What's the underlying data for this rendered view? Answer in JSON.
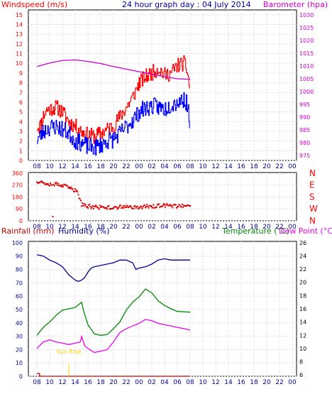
{
  "chart_data": [
    {
      "type": "line",
      "title": "24 hour graph day : 04 July 2014",
      "ylabel": "Windspeed (m/s)",
      "ylabel_right": "Barometer (hpa)",
      "x_ticks": [
        "08",
        "10",
        "12",
        "14",
        "16",
        "18",
        "20",
        "22",
        "00",
        "02",
        "04",
        "06",
        "08",
        "10",
        "12",
        "14",
        "16",
        "18",
        "20",
        "22",
        "00"
      ],
      "y_ticks": [
        0,
        1,
        2,
        3,
        4,
        5,
        6,
        7,
        8,
        9,
        10,
        11,
        12,
        13,
        14,
        15
      ],
      "y_ticks_right": [
        975,
        980,
        985,
        990,
        995,
        1000,
        1005,
        1010,
        1015,
        1020,
        1025,
        1030
      ],
      "ylim": [
        0,
        15.5
      ],
      "ylim_right": [
        973,
        1032
      ],
      "grid": true,
      "series": [
        {
          "key": "wind_gust",
          "color": "#ff0000",
          "kpoints": [
            [
              0,
              3.5
            ],
            [
              0.5,
              3.6
            ],
            [
              1,
              4.6
            ],
            [
              1.5,
              5.2
            ],
            [
              2,
              5.3
            ],
            [
              3,
              5.5
            ],
            [
              4,
              5.0
            ],
            [
              5,
              4.0
            ],
            [
              6,
              3.5
            ],
            [
              6.5,
              3.3
            ],
            [
              7,
              3.0
            ],
            [
              8,
              2.6
            ],
            [
              9,
              2.5
            ],
            [
              10,
              2.8
            ],
            [
              11,
              3.2
            ],
            [
              12,
              3.6
            ],
            [
              13,
              4.5
            ],
            [
              14,
              5.5
            ],
            [
              15,
              6.5
            ],
            [
              16,
              8.0
            ],
            [
              17,
              8.6
            ],
            [
              18,
              9.0
            ],
            [
              19,
              9.5
            ],
            [
              20,
              8.8
            ],
            [
              21,
              9.0
            ],
            [
              22,
              9.8
            ],
            [
              23,
              10.0
            ],
            [
              23.5,
              9.3
            ],
            [
              24,
              7.0
            ]
          ],
          "noise": 0.8,
          "seed": 11
        },
        {
          "key": "wind_avg",
          "color": "#0000ff",
          "kpoints": [
            [
              0,
              2.2
            ],
            [
              0.5,
              2.5
            ],
            [
              1,
              3.0
            ],
            [
              2,
              3.4
            ],
            [
              3,
              3.5
            ],
            [
              4,
              3.2
            ],
            [
              5,
              2.8
            ],
            [
              6,
              2.0
            ],
            [
              7,
              1.8
            ],
            [
              8,
              1.4
            ],
            [
              9,
              1.3
            ],
            [
              10,
              1.6
            ],
            [
              11,
              2.0
            ],
            [
              12,
              2.2
            ],
            [
              13,
              2.8
            ],
            [
              14,
              3.5
            ],
            [
              15,
              4.2
            ],
            [
              16,
              5.0
            ],
            [
              17,
              5.4
            ],
            [
              18,
              5.6
            ],
            [
              19,
              5.5
            ],
            [
              20,
              5.3
            ],
            [
              21,
              5.8
            ],
            [
              22,
              6.0
            ],
            [
              23,
              6.3
            ],
            [
              23.5,
              5.8
            ],
            [
              24,
              3.8
            ]
          ],
          "noise": 0.9,
          "seed": 23
        },
        {
          "key": "barometer",
          "axis": "right",
          "color": "#cc00cc",
          "kpoints": [
            [
              0,
              1009.8
            ],
            [
              2,
              1011.2
            ],
            [
              4,
              1012.2
            ],
            [
              6,
              1012.4
            ],
            [
              8,
              1011.8
            ],
            [
              10,
              1011.0
            ],
            [
              12,
              1009.8
            ],
            [
              14,
              1008.8
            ],
            [
              16,
              1007.8
            ],
            [
              18,
              1006.8
            ],
            [
              20,
              1005.8
            ],
            [
              22,
              1005.0
            ],
            [
              24,
              1004.8
            ]
          ],
          "noise": 0,
          "seed": 1
        }
      ]
    },
    {
      "type": "scatter",
      "x_ticks": [
        "08",
        "10",
        "12",
        "14",
        "16",
        "18",
        "20",
        "22",
        "00",
        "02",
        "04",
        "06",
        "08",
        "10",
        "12",
        "14",
        "16",
        "18",
        "20",
        "22",
        "00"
      ],
      "y_ticks": [
        0,
        90,
        180,
        270,
        360
      ],
      "y_tick_labels_right": [
        "N",
        "W",
        "S",
        "E",
        "N"
      ],
      "ylim": [
        0,
        365
      ],
      "grid": true,
      "series": [
        {
          "key": "wind_direction",
          "color": "#dd0000",
          "kpoints": [
            [
              0,
              300
            ],
            [
              1,
              290
            ],
            [
              2,
              280
            ],
            [
              3,
              275
            ],
            [
              4,
              265
            ],
            [
              5,
              250
            ],
            [
              6,
              230
            ],
            [
              6.5,
              205
            ],
            [
              7,
              120
            ],
            [
              8,
              110
            ],
            [
              10,
              100
            ],
            [
              12,
              100
            ],
            [
              14,
              105
            ],
            [
              16,
              105
            ],
            [
              18,
              110
            ],
            [
              20,
              115
            ],
            [
              22,
              112
            ],
            [
              24,
              105
            ]
          ],
          "noise": 15,
          "seed": 37
        }
      ]
    },
    {
      "type": "line",
      "ylabel": "Rainfall (mm)",
      "ylabel2": "Humidity (%)",
      "ylabel_right": "Temperature (°C)",
      "ylabel_right2": "Dew Point (°C)",
      "x_ticks": [
        "08",
        "10",
        "12",
        "14",
        "16",
        "18",
        "20",
        "22",
        "00",
        "02",
        "04",
        "06",
        "08",
        "10",
        "12",
        "14",
        "16",
        "18",
        "20",
        "22",
        "00"
      ],
      "y_ticks": [
        0,
        10,
        20,
        30,
        40,
        50,
        60,
        70,
        80,
        90,
        100
      ],
      "y_ticks_right": [
        6,
        8,
        10,
        12,
        14,
        16,
        18,
        20,
        22,
        24,
        26
      ],
      "ylim": [
        0,
        101
      ],
      "ylim_right": [
        5.8,
        26.2
      ],
      "grid": true,
      "annotation": "Sun Rise",
      "annotation_x": 5.0,
      "series": [
        {
          "key": "humidity",
          "color": "#000099",
          "kpoints": [
            [
              0,
              91
            ],
            [
              1,
              90
            ],
            [
              2,
              87
            ],
            [
              3,
              85
            ],
            [
              4,
              82
            ],
            [
              5,
              76
            ],
            [
              6,
              72
            ],
            [
              6.5,
              71
            ],
            [
              7,
              72
            ],
            [
              7.5,
              74
            ],
            [
              8,
              78
            ],
            [
              8.5,
              81
            ],
            [
              9,
              82
            ],
            [
              10,
              83
            ],
            [
              11,
              84
            ],
            [
              12,
              85
            ],
            [
              13,
              87
            ],
            [
              14,
              87
            ],
            [
              15,
              85
            ],
            [
              15.5,
              80
            ],
            [
              16,
              81
            ],
            [
              17,
              82
            ],
            [
              18,
              84
            ],
            [
              19,
              87
            ],
            [
              20,
              88
            ],
            [
              21,
              87
            ],
            [
              22,
              87
            ],
            [
              24,
              87
            ]
          ],
          "noise": 0,
          "seed": 1
        },
        {
          "key": "temperature",
          "axis": "right",
          "color": "#008800",
          "kpoints": [
            [
              0,
              12.0
            ],
            [
              1,
              13.2
            ],
            [
              2,
              14.0
            ],
            [
              3,
              15.0
            ],
            [
              4,
              15.8
            ],
            [
              5,
              16.0
            ],
            [
              6,
              16.2
            ],
            [
              6.5,
              16.6
            ],
            [
              7,
              17.0
            ],
            [
              7.4,
              15.4
            ],
            [
              8,
              13.6
            ],
            [
              9,
              12.2
            ],
            [
              10,
              12.0
            ],
            [
              11,
              12.1
            ],
            [
              12,
              13.0
            ],
            [
              13,
              14.0
            ],
            [
              14,
              15.8
            ],
            [
              15,
              17.0
            ],
            [
              16,
              17.8
            ],
            [
              17,
              19.0
            ],
            [
              18,
              18.4
            ],
            [
              19,
              17.2
            ],
            [
              20,
              16.5
            ],
            [
              21,
              16.0
            ],
            [
              22,
              15.6
            ],
            [
              24,
              15.5
            ]
          ],
          "noise": 0,
          "seed": 1
        },
        {
          "key": "dew_point",
          "axis": "right",
          "color": "#ee00ee",
          "kpoints": [
            [
              0,
              10.0
            ],
            [
              1,
              11.0
            ],
            [
              2,
              11.3
            ],
            [
              3,
              11.0
            ],
            [
              4,
              10.8
            ],
            [
              5,
              10.6
            ],
            [
              6,
              10.8
            ],
            [
              6.8,
              11.0
            ],
            [
              7,
              11.8
            ],
            [
              7.5,
              10.4
            ],
            [
              8,
              10.0
            ],
            [
              9,
              9.4
            ],
            [
              10,
              9.6
            ],
            [
              11,
              9.8
            ],
            [
              12,
              11.0
            ],
            [
              13,
              12.4
            ],
            [
              14,
              13.0
            ],
            [
              15,
              13.4
            ],
            [
              16,
              13.8
            ],
            [
              17,
              14.4
            ],
            [
              18,
              14.2
            ],
            [
              19,
              13.8
            ],
            [
              20,
              13.6
            ],
            [
              21,
              13.4
            ],
            [
              22,
              13.2
            ],
            [
              24,
              12.8
            ]
          ],
          "noise": 0,
          "seed": 1
        },
        {
          "key": "rainfall",
          "color": "#cc0000",
          "kpoints": [
            [
              0,
              2
            ],
            [
              0.4,
              2
            ],
            [
              0.45,
              0
            ],
            [
              24,
              0
            ]
          ],
          "noise": 0,
          "seed": 1
        }
      ]
    }
  ]
}
